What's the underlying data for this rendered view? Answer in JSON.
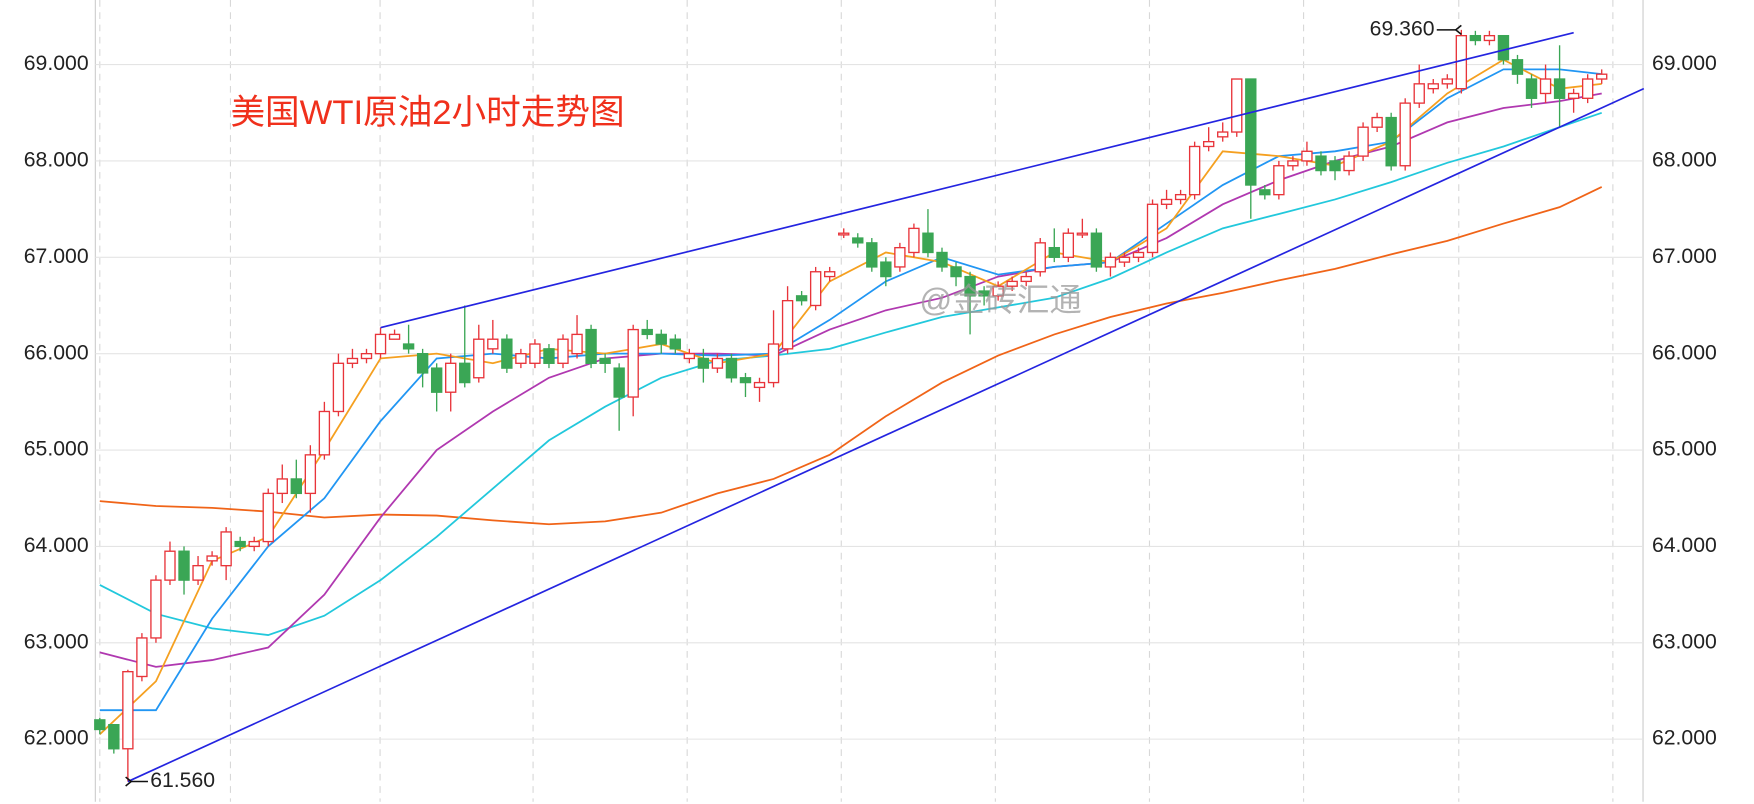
{
  "chart_data": {
    "type": "candlestick",
    "title": "美国WTI原油2小时走势图",
    "title_color": "#f0301c",
    "watermark": "@金砖汇通",
    "up_color": "#e8343a",
    "down_color": "#3aa655",
    "ylim": [
      61.35,
      69.67
    ],
    "yticks": [
      {
        "value": 62,
        "label": "62.000"
      },
      {
        "value": 63,
        "label": "63.000"
      },
      {
        "value": 64,
        "label": "64.000"
      },
      {
        "value": 65,
        "label": "65.000"
      },
      {
        "value": 66,
        "label": "66.000"
      },
      {
        "value": 67,
        "label": "67.000"
      },
      {
        "value": 68,
        "label": "68.000"
      },
      {
        "value": 69,
        "label": "69.000"
      }
    ],
    "grid": true,
    "candles": [
      [
        62.2,
        62.22,
        62.05,
        62.1
      ],
      [
        62.15,
        62.15,
        61.85,
        61.9
      ],
      [
        61.9,
        62.72,
        61.56,
        62.7
      ],
      [
        62.65,
        63.1,
        62.6,
        63.05
      ],
      [
        63.05,
        63.7,
        63.0,
        63.65
      ],
      [
        63.65,
        64.05,
        63.6,
        63.95
      ],
      [
        63.95,
        64.0,
        63.5,
        63.65
      ],
      [
        63.65,
        63.9,
        63.6,
        63.8
      ],
      [
        63.85,
        63.95,
        63.8,
        63.9
      ],
      [
        63.8,
        64.2,
        63.65,
        64.15
      ],
      [
        64.05,
        64.1,
        63.95,
        64.0
      ],
      [
        64.0,
        64.1,
        63.95,
        64.05
      ],
      [
        64.05,
        64.6,
        64.0,
        64.55
      ],
      [
        64.55,
        64.85,
        64.45,
        64.7
      ],
      [
        64.7,
        64.9,
        64.5,
        64.55
      ],
      [
        64.55,
        65.05,
        64.35,
        64.95
      ],
      [
        64.95,
        65.5,
        64.9,
        65.4
      ],
      [
        65.4,
        66.0,
        65.35,
        65.9
      ],
      [
        65.9,
        66.05,
        65.85,
        65.95
      ],
      [
        65.95,
        66.05,
        65.9,
        66.0
      ],
      [
        66.0,
        66.27,
        65.95,
        66.2
      ],
      [
        66.15,
        66.25,
        66.15,
        66.2
      ],
      [
        66.1,
        66.3,
        66.0,
        66.05
      ],
      [
        66.0,
        66.05,
        65.65,
        65.8
      ],
      [
        65.85,
        65.9,
        65.4,
        65.6
      ],
      [
        65.6,
        66.0,
        65.4,
        65.9
      ],
      [
        65.9,
        66.5,
        65.65,
        65.7
      ],
      [
        65.75,
        66.3,
        65.7,
        66.15
      ],
      [
        66.05,
        66.35,
        66.0,
        66.15
      ],
      [
        66.15,
        66.2,
        65.8,
        65.85
      ],
      [
        65.9,
        66.05,
        65.85,
        66.0
      ],
      [
        65.9,
        66.15,
        65.85,
        66.1
      ],
      [
        66.05,
        66.1,
        65.85,
        65.9
      ],
      [
        65.9,
        66.2,
        65.85,
        66.15
      ],
      [
        66.0,
        66.4,
        65.95,
        66.2
      ],
      [
        66.25,
        66.3,
        65.85,
        65.9
      ],
      [
        65.95,
        66.0,
        65.8,
        65.9
      ],
      [
        65.85,
        65.9,
        65.2,
        65.55
      ],
      [
        65.55,
        66.3,
        65.35,
        66.25
      ],
      [
        66.25,
        66.35,
        66.15,
        66.2
      ],
      [
        66.2,
        66.25,
        66.0,
        66.1
      ],
      [
        66.15,
        66.2,
        66.0,
        66.05
      ],
      [
        65.95,
        66.05,
        65.9,
        66.0
      ],
      [
        65.95,
        66.05,
        65.7,
        65.85
      ],
      [
        65.85,
        66.0,
        65.8,
        65.95
      ],
      [
        65.95,
        66.0,
        65.7,
        65.75
      ],
      [
        65.75,
        65.8,
        65.55,
        65.7
      ],
      [
        65.65,
        65.75,
        65.5,
        65.7
      ],
      [
        65.7,
        66.45,
        65.65,
        66.1
      ],
      [
        66.05,
        66.7,
        66.0,
        66.55
      ],
      [
        66.6,
        66.65,
        66.5,
        66.55
      ],
      [
        66.5,
        66.9,
        66.45,
        66.85
      ],
      [
        66.8,
        66.9,
        66.75,
        66.85
      ],
      [
        67.25,
        67.3,
        67.2,
        67.25
      ],
      [
        67.2,
        67.25,
        67.1,
        67.15
      ],
      [
        67.15,
        67.2,
        66.85,
        66.9
      ],
      [
        66.95,
        67.0,
        66.7,
        66.8
      ],
      [
        66.9,
        67.15,
        66.85,
        67.1
      ],
      [
        67.05,
        67.35,
        67.0,
        67.3
      ],
      [
        67.25,
        67.5,
        67.0,
        67.05
      ],
      [
        67.05,
        67.1,
        66.85,
        66.9
      ],
      [
        66.9,
        66.95,
        66.7,
        66.8
      ],
      [
        66.8,
        66.85,
        66.2,
        66.6
      ],
      [
        66.65,
        66.7,
        66.5,
        66.6
      ],
      [
        66.6,
        66.75,
        66.55,
        66.7
      ],
      [
        66.7,
        66.8,
        66.65,
        66.75
      ],
      [
        66.75,
        66.85,
        66.7,
        66.8
      ],
      [
        66.85,
        67.2,
        66.8,
        67.15
      ],
      [
        67.1,
        67.3,
        66.95,
        67.0
      ],
      [
        67.0,
        67.3,
        66.95,
        67.25
      ],
      [
        67.25,
        67.4,
        67.2,
        67.25
      ],
      [
        67.25,
        67.3,
        66.85,
        66.9
      ],
      [
        66.9,
        67.05,
        66.8,
        67.0
      ],
      [
        66.95,
        67.05,
        66.9,
        67.0
      ],
      [
        67.0,
        67.1,
        66.95,
        67.05
      ],
      [
        67.05,
        67.6,
        67.0,
        67.55
      ],
      [
        67.55,
        67.7,
        67.5,
        67.6
      ],
      [
        67.6,
        67.7,
        67.55,
        67.65
      ],
      [
        67.65,
        68.2,
        67.6,
        68.15
      ],
      [
        68.15,
        68.35,
        68.1,
        68.2
      ],
      [
        68.25,
        68.4,
        68.2,
        68.3
      ],
      [
        68.3,
        68.85,
        68.25,
        68.85
      ],
      [
        68.85,
        68.85,
        67.4,
        67.75
      ],
      [
        67.7,
        67.75,
        67.6,
        67.65
      ],
      [
        67.65,
        68.0,
        67.6,
        67.95
      ],
      [
        67.95,
        68.05,
        67.9,
        68.0
      ],
      [
        68.0,
        68.2,
        67.95,
        68.1
      ],
      [
        68.05,
        68.1,
        67.85,
        67.9
      ],
      [
        68.0,
        68.05,
        67.8,
        67.9
      ],
      [
        67.9,
        68.1,
        67.85,
        68.05
      ],
      [
        68.05,
        68.4,
        68.0,
        68.35
      ],
      [
        68.35,
        68.5,
        68.3,
        68.45
      ],
      [
        68.45,
        68.5,
        67.9,
        67.95
      ],
      [
        67.95,
        68.65,
        67.9,
        68.6
      ],
      [
        68.6,
        69.0,
        68.55,
        68.8
      ],
      [
        68.75,
        68.85,
        68.7,
        68.8
      ],
      [
        68.8,
        68.9,
        68.75,
        68.85
      ],
      [
        68.75,
        69.36,
        68.7,
        69.3
      ],
      [
        69.3,
        69.35,
        69.2,
        69.25
      ],
      [
        69.25,
        69.35,
        69.2,
        69.3
      ],
      [
        69.3,
        69.3,
        69.0,
        69.05
      ],
      [
        69.05,
        69.1,
        68.8,
        68.9
      ],
      [
        68.85,
        68.9,
        68.55,
        68.65
      ],
      [
        68.7,
        69.0,
        68.6,
        68.85
      ],
      [
        68.85,
        69.2,
        68.35,
        68.65
      ],
      [
        68.65,
        68.75,
        68.5,
        68.7
      ],
      [
        68.65,
        68.9,
        68.6,
        68.85
      ],
      [
        68.85,
        68.95,
        68.8,
        68.9
      ]
    ],
    "series": [
      {
        "color": "#f06418",
        "x": [
          0,
          4,
          8,
          12,
          16,
          20,
          24,
          28,
          32,
          36,
          40,
          44,
          48,
          52,
          56,
          60,
          64,
          68,
          72,
          76,
          80,
          84,
          88,
          92,
          96,
          100,
          104,
          107
        ],
        "values": [
          64.47,
          64.42,
          64.4,
          64.36,
          64.3,
          64.33,
          64.32,
          64.27,
          64.23,
          64.26,
          64.35,
          64.55,
          64.7,
          64.95,
          65.35,
          65.7,
          65.98,
          66.2,
          66.38,
          66.52,
          66.63,
          66.76,
          66.88,
          67.03,
          67.17,
          67.35,
          67.52,
          67.73
        ]
      },
      {
        "color": "#22c8dc",
        "x": [
          0,
          4,
          8,
          12,
          16,
          20,
          24,
          28,
          32,
          36,
          40,
          44,
          48,
          52,
          56,
          60,
          64,
          68,
          72,
          76,
          80,
          84,
          88,
          92,
          96,
          100,
          104,
          107
        ],
        "values": [
          63.6,
          63.3,
          63.15,
          63.08,
          63.28,
          63.65,
          64.1,
          64.6,
          65.1,
          65.45,
          65.75,
          65.93,
          65.98,
          66.05,
          66.22,
          66.38,
          66.48,
          66.58,
          66.78,
          67.05,
          67.3,
          67.45,
          67.6,
          67.78,
          67.98,
          68.15,
          68.35,
          68.5
        ]
      },
      {
        "color": "#b038b0",
        "x": [
          0,
          4,
          8,
          12,
          16,
          20,
          24,
          28,
          32,
          36,
          40,
          44,
          48,
          52,
          56,
          60,
          64,
          68,
          72,
          76,
          80,
          84,
          88,
          92,
          96,
          100,
          104,
          107
        ],
        "values": [
          62.9,
          62.75,
          62.82,
          62.95,
          63.5,
          64.3,
          65.0,
          65.4,
          65.75,
          65.95,
          66.0,
          66.0,
          65.98,
          66.25,
          66.45,
          66.58,
          66.8,
          66.9,
          66.95,
          67.2,
          67.55,
          67.8,
          68.0,
          68.15,
          68.4,
          68.55,
          68.62,
          68.7
        ]
      },
      {
        "color": "#2196f3",
        "x": [
          0,
          4,
          8,
          12,
          16,
          20,
          24,
          28,
          32,
          36,
          40,
          44,
          48,
          52,
          56,
          60,
          64,
          68,
          72,
          76,
          80,
          84,
          88,
          92,
          96,
          100,
          104,
          107
        ],
        "values": [
          62.3,
          62.3,
          63.25,
          64.0,
          64.5,
          65.3,
          65.95,
          66.0,
          65.95,
          66.0,
          66.0,
          65.98,
          66.0,
          66.35,
          66.75,
          67.0,
          66.82,
          66.9,
          66.95,
          67.35,
          67.75,
          68.05,
          68.1,
          68.2,
          68.65,
          68.95,
          68.95,
          68.9
        ]
      },
      {
        "color": "#f5a020",
        "x": [
          0,
          4,
          8,
          12,
          16,
          20,
          24,
          28,
          32,
          36,
          40,
          44,
          48,
          52,
          56,
          60,
          64,
          68,
          72,
          76,
          80,
          84,
          88,
          92,
          96,
          100,
          104,
          107
        ],
        "values": [
          62.05,
          62.6,
          63.85,
          64.1,
          65.0,
          65.95,
          66.0,
          65.9,
          66.05,
          66.0,
          66.1,
          65.9,
          66.0,
          66.75,
          67.05,
          66.95,
          66.7,
          67.05,
          66.95,
          67.3,
          68.1,
          68.05,
          67.95,
          68.2,
          68.7,
          69.05,
          68.75,
          68.8
        ]
      }
    ],
    "trend_lines": [
      {
        "color": "#2424e0",
        "x": [
          20,
          105
        ],
        "values": [
          66.27,
          69.33
        ]
      },
      {
        "color": "#2424e0",
        "x": [
          2,
          110
        ],
        "values": [
          61.56,
          68.75
        ]
      }
    ],
    "annotations": [
      {
        "x": 97,
        "value": 69.36,
        "label": "69.360",
        "side": "left"
      },
      {
        "x": 2,
        "value": 61.56,
        "label": "61.560",
        "side": "right"
      }
    ]
  }
}
